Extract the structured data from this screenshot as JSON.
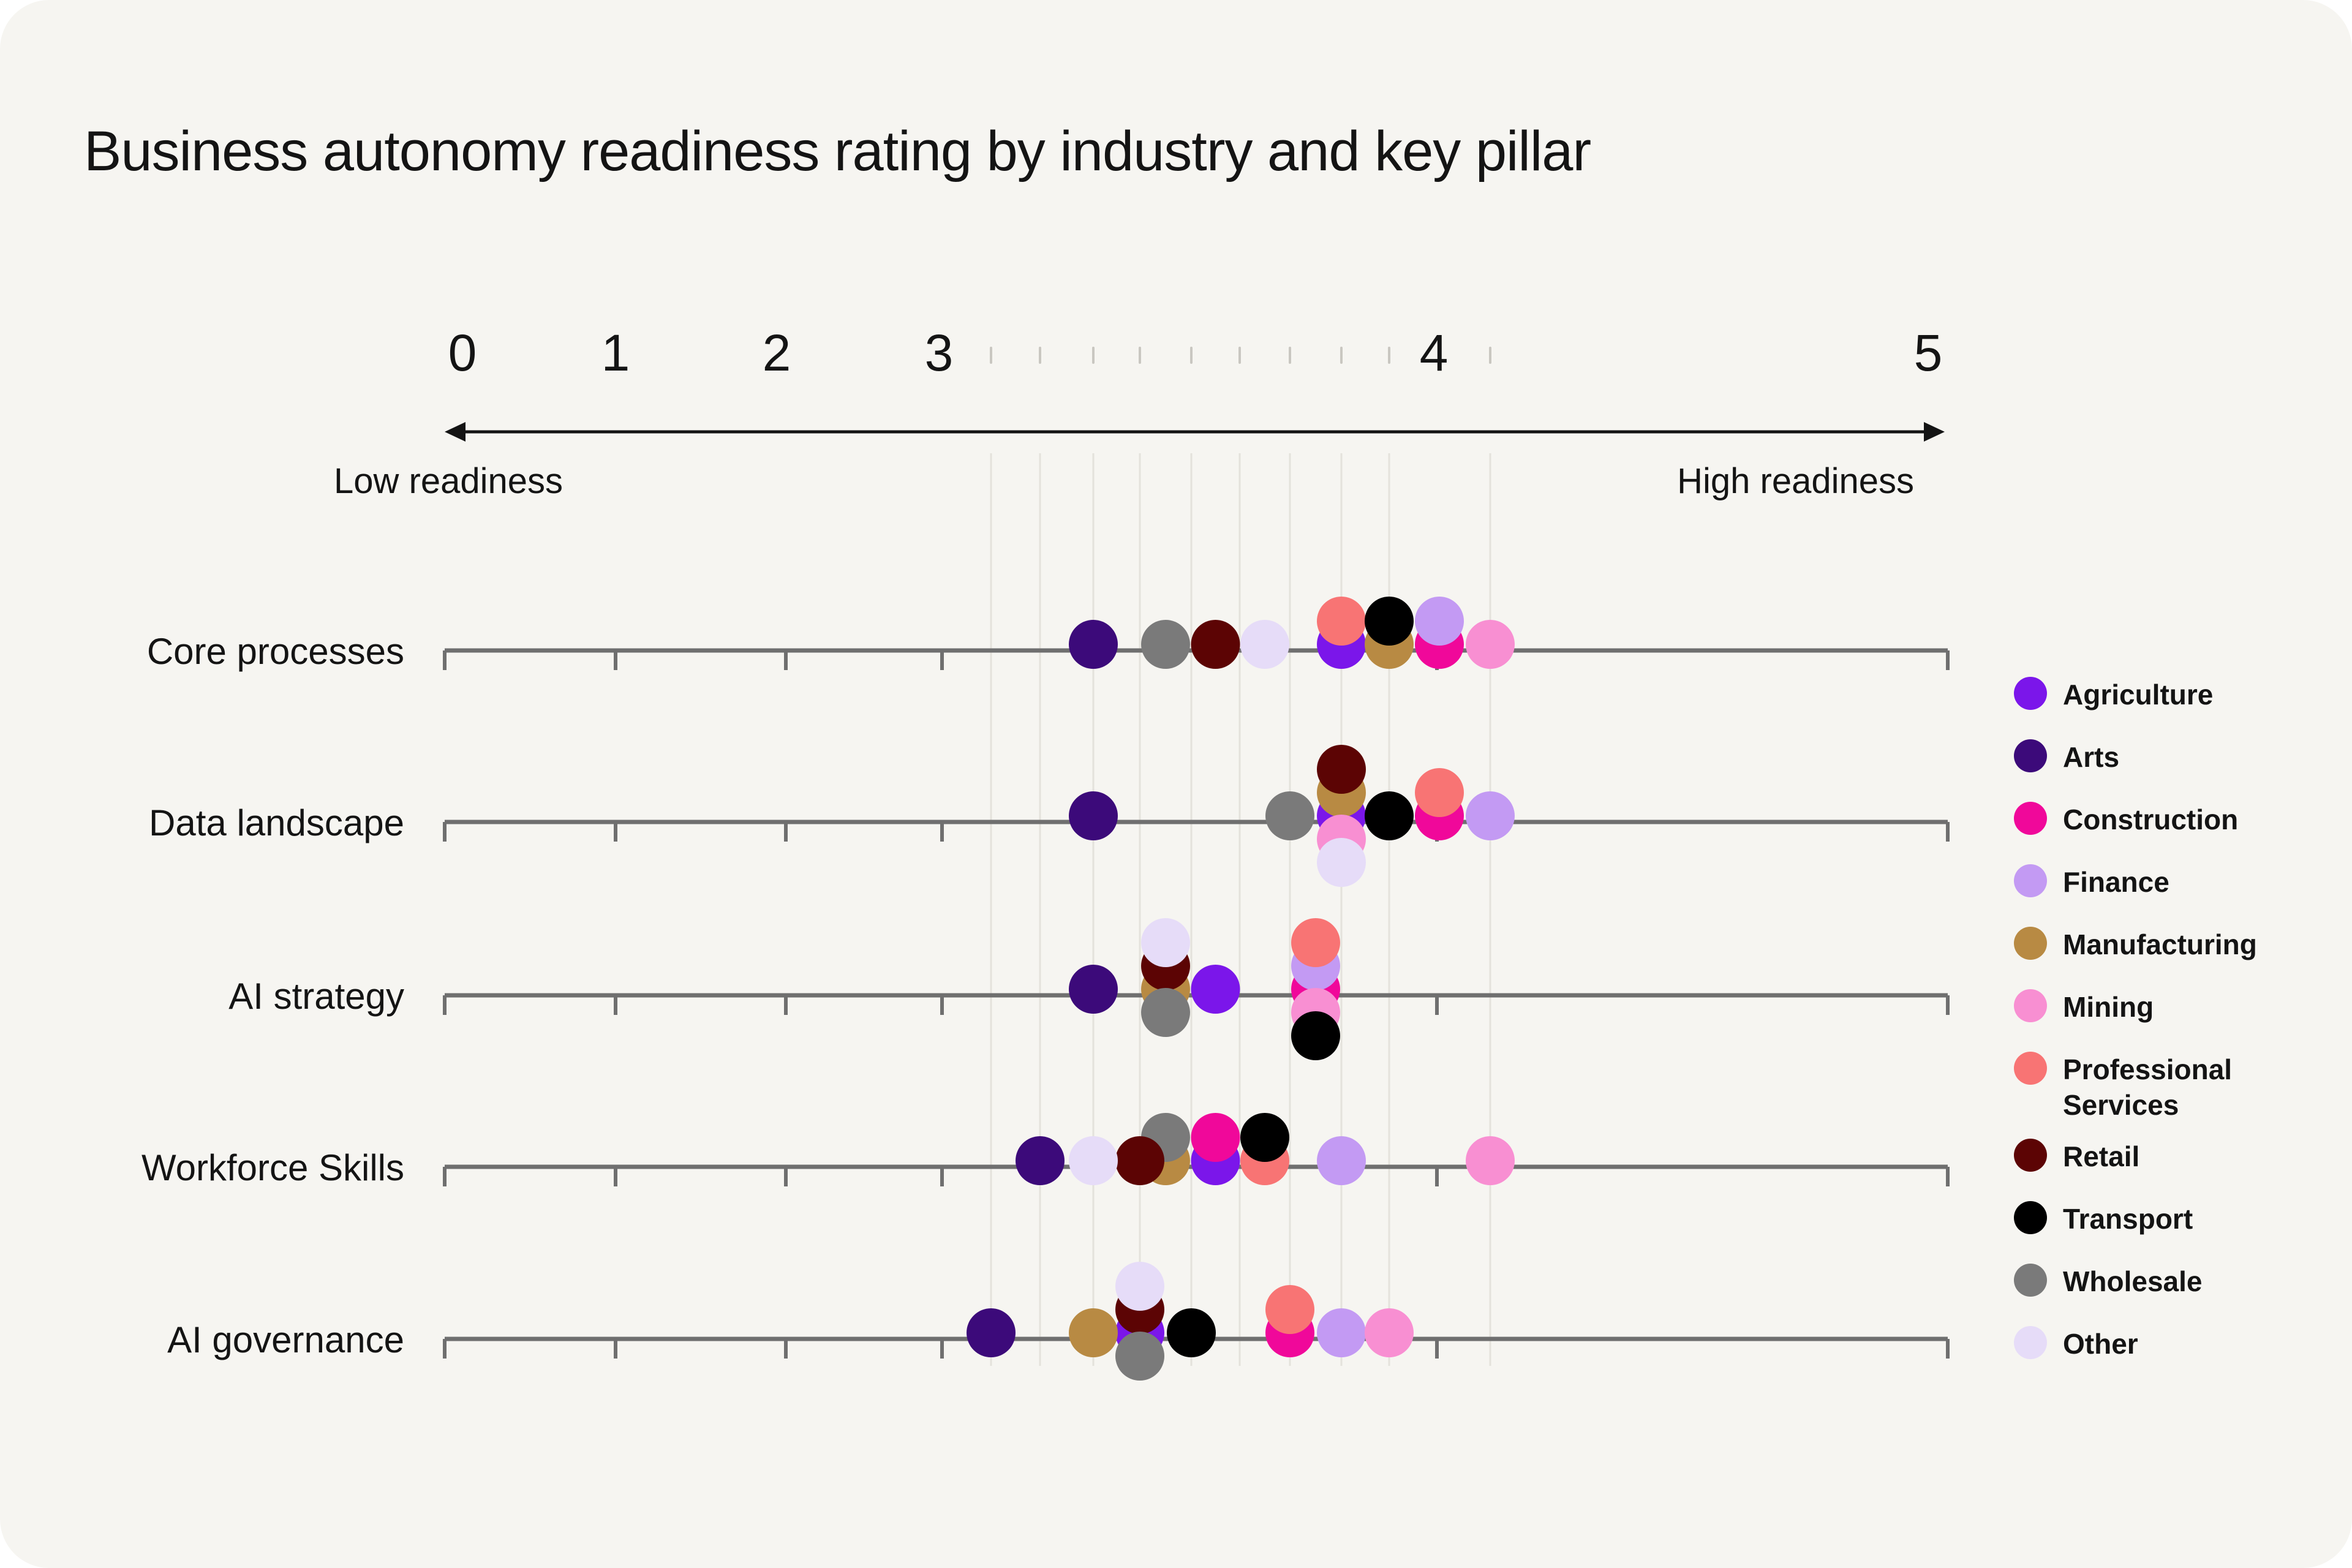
{
  "title": "Business autonomy readiness rating by industry and key pillar",
  "chart_data": {
    "type": "scatter",
    "title": "Business autonomy readiness rating by industry and key pillar",
    "x_range": [
      0,
      5
    ],
    "axis_ticks": [
      "0",
      "1",
      "2",
      "3",
      "4",
      "5"
    ],
    "minor_ticks": [
      3.1,
      3.2,
      3.3,
      3.4,
      3.5,
      3.6,
      3.7,
      3.8,
      3.9,
      4.1
    ],
    "axis_low_label": "Low readiness",
    "axis_high_label": "High readiness",
    "legend_position": "right",
    "categories": [
      "Core processes",
      "Data landscape",
      "AI strategy",
      "Workforce Skills",
      "AI governance"
    ],
    "series": [
      {
        "name": "Agriculture",
        "color": "#7b16ea",
        "values": [
          3.8,
          3.8,
          3.55,
          3.55,
          3.4
        ]
      },
      {
        "name": "Arts",
        "color": "#3c0a7a",
        "values": [
          3.3,
          3.3,
          3.3,
          3.2,
          3.1
        ]
      },
      {
        "name": "Construction",
        "color": "#f0089a",
        "values": [
          4.0,
          4.0,
          3.75,
          3.55,
          3.7
        ]
      },
      {
        "name": "Finance",
        "color": "#c39af3",
        "values": [
          4.0,
          4.1,
          3.75,
          3.8,
          3.8
        ]
      },
      {
        "name": "Manufacturing",
        "color": "#b88a43",
        "values": [
          3.9,
          3.8,
          3.45,
          3.45,
          3.3
        ]
      },
      {
        "name": "Mining",
        "color": "#f88fd2",
        "values": [
          4.1,
          3.8,
          3.75,
          4.1,
          3.9
        ]
      },
      {
        "name": "Professional Services",
        "color": "#f87474",
        "values": [
          3.8,
          4.0,
          3.75,
          3.65,
          3.7
        ]
      },
      {
        "name": "Retail",
        "color": "#5c0404",
        "values": [
          3.55,
          3.8,
          3.45,
          3.4,
          3.4
        ]
      },
      {
        "name": "Transport",
        "color": "#000000",
        "values": [
          3.9,
          3.9,
          3.75,
          3.65,
          3.5
        ]
      },
      {
        "name": "Wholesale",
        "color": "#7a7a7a",
        "values": [
          3.45,
          3.7,
          3.45,
          3.45,
          3.4
        ]
      },
      {
        "name": "Other",
        "color": "#e6dcf8",
        "values": [
          3.65,
          3.8,
          3.45,
          3.3,
          3.4
        ]
      }
    ]
  }
}
